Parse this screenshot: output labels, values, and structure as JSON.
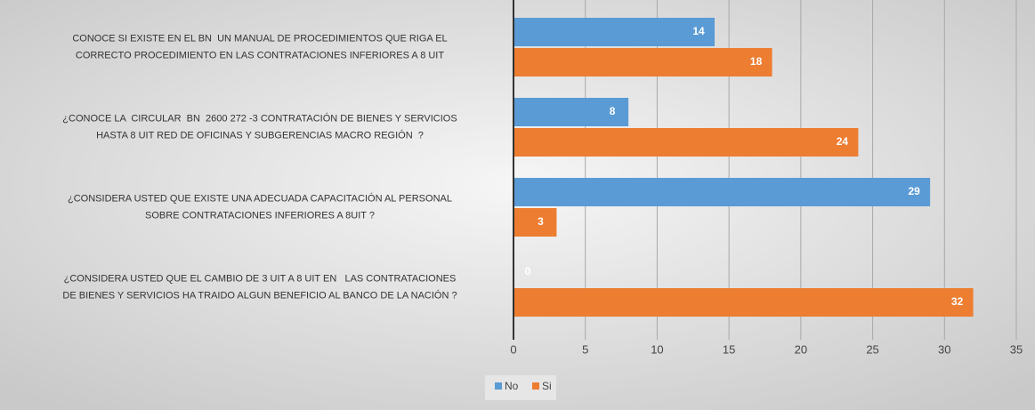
{
  "chart_data": {
    "type": "bar",
    "orientation": "horizontal",
    "categories": [
      "CONOCE SI EXISTE EN EL BN  UN MANUAL DE PROCEDIMIENTOS QUE RIGA EL\nCORRECTO PROCEDIMIENTO EN LAS CONTRATACIONES INFERIORES A 8 UIT",
      "¿CONOCE LA  CIRCULAR  BN  2600 272 -3 CONTRATACIÓN DE BIENES Y SERVICIOS\nHASTA 8 UIT RED DE OFICINAS Y SUBGERENCIAS MACRO REGIÓN  ?",
      "¿CONSIDERA USTED QUE EXISTE UNA ADECUADA CAPACITACIÓN AL PERSONAL\nSOBRE CONTRATACIONES INFERIORES A 8UIT ?",
      "¿CONSIDERA USTED QUE EL CAMBIO DE 3 UIT A 8 UIT EN   LAS CONTRATACIONES\nDE BIENES Y SERVICIOS HA TRAIDO ALGUN BENEFICIO AL BANCO DE LA NACIÓN ?"
    ],
    "series": [
      {
        "name": "No",
        "color": "#5b9bd5",
        "values": [
          14,
          8,
          29,
          0
        ]
      },
      {
        "name": "Si",
        "color": "#ed7d31",
        "values": [
          18,
          24,
          3,
          32
        ]
      }
    ],
    "xlim": [
      0,
      35
    ],
    "xticks": [
      0,
      5,
      10,
      15,
      20,
      25,
      30,
      35
    ],
    "grid": true,
    "legend": "bottom"
  }
}
